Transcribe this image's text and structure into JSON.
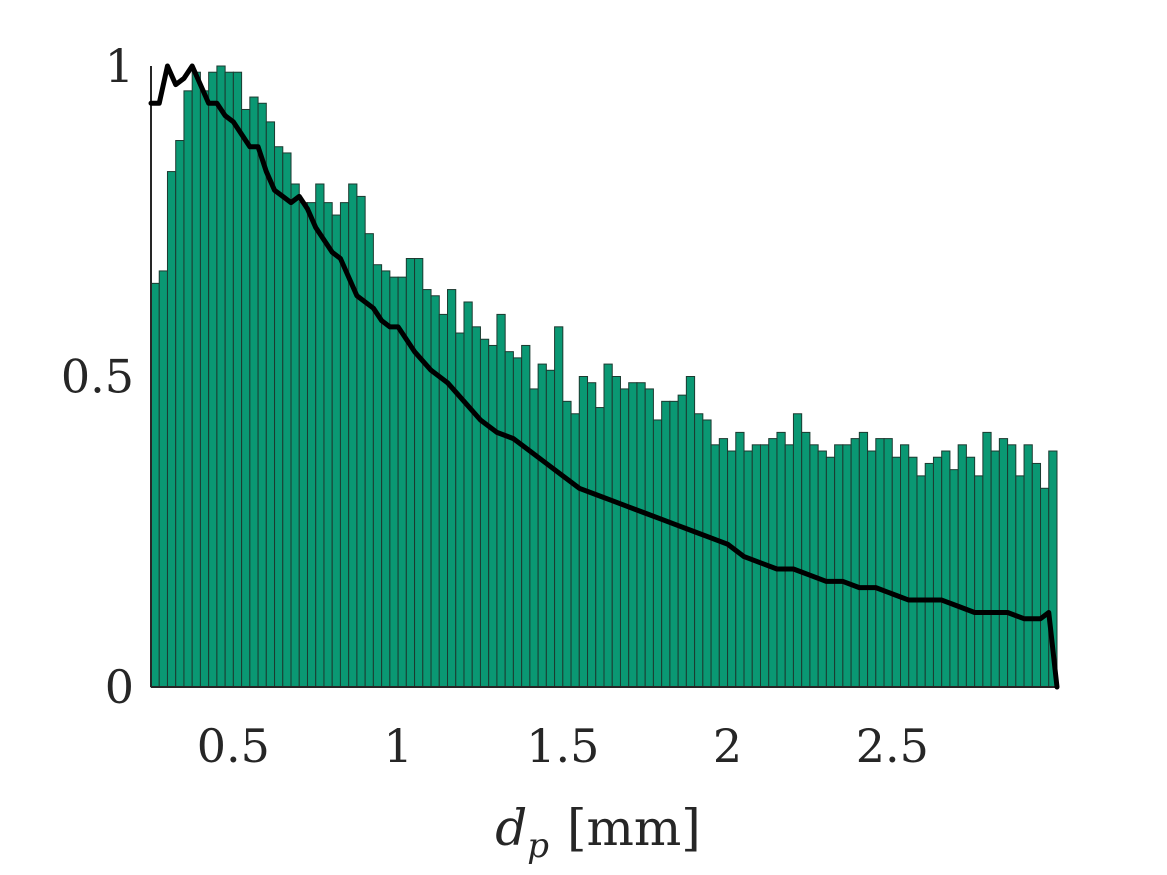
{
  "chart_data": {
    "type": "bar",
    "title": "",
    "xlabel": {
      "var": "d",
      "sub": "p",
      "unit": "[mm]"
    },
    "ylabel": "",
    "xlim": [
      0.25,
      3.0
    ],
    "ylim": [
      0,
      1
    ],
    "grid": false,
    "legend": "none",
    "bin_start": 0.25,
    "bin_width": 0.025,
    "x_ticks": [
      0.5,
      1,
      1.5,
      2,
      2.5
    ],
    "x_tick_labels": [
      "0.5",
      "1",
      "1.5",
      "2",
      "2.5"
    ],
    "y_ticks": [
      0,
      0.5,
      1
    ],
    "y_tick_labels": [
      "0",
      "0.5",
      "1"
    ],
    "colors": {
      "bar_fill": "#0a9873",
      "bar_edge": "#1c3a30",
      "line": "#000000",
      "axis": "#262626"
    },
    "series": [
      {
        "type": "bar",
        "values": [
          0.65,
          0.67,
          0.83,
          0.88,
          0.96,
          0.99,
          0.96,
          0.99,
          1.0,
          0.99,
          0.99,
          0.93,
          0.95,
          0.94,
          0.91,
          0.87,
          0.86,
          0.81,
          0.78,
          0.78,
          0.81,
          0.78,
          0.76,
          0.78,
          0.81,
          0.79,
          0.73,
          0.68,
          0.67,
          0.66,
          0.66,
          0.69,
          0.69,
          0.64,
          0.63,
          0.6,
          0.64,
          0.57,
          0.62,
          0.58,
          0.56,
          0.55,
          0.6,
          0.54,
          0.53,
          0.55,
          0.48,
          0.52,
          0.51,
          0.58,
          0.46,
          0.44,
          0.5,
          0.49,
          0.45,
          0.52,
          0.5,
          0.48,
          0.49,
          0.49,
          0.48,
          0.43,
          0.46,
          0.46,
          0.47,
          0.5,
          0.44,
          0.43,
          0.39,
          0.4,
          0.38,
          0.41,
          0.38,
          0.39,
          0.39,
          0.4,
          0.41,
          0.39,
          0.44,
          0.41,
          0.39,
          0.38,
          0.37,
          0.39,
          0.39,
          0.4,
          0.41,
          0.38,
          0.4,
          0.4,
          0.37,
          0.39,
          0.37,
          0.34,
          0.36,
          0.37,
          0.38,
          0.35,
          0.39,
          0.37,
          0.34,
          0.41,
          0.38,
          0.4,
          0.39,
          0.34,
          0.39,
          0.36,
          0.32,
          0.38,
          0.35,
          0.38,
          0.36,
          0.32,
          0.37,
          0.32,
          0.33,
          0.36,
          0.36,
          0.37,
          0.3,
          0.35,
          0.31,
          0.32,
          0.34,
          0.33,
          0.37,
          0.32,
          0.36,
          0.28
        ]
      },
      {
        "type": "line",
        "x": [
          0.25,
          0.275,
          0.3,
          0.325,
          0.35,
          0.375,
          0.4,
          0.425,
          0.45,
          0.475,
          0.5,
          0.525,
          0.55,
          0.575,
          0.6,
          0.625,
          0.65,
          0.675,
          0.7,
          0.725,
          0.75,
          0.775,
          0.8,
          0.825,
          0.85,
          0.875,
          0.9,
          0.925,
          0.95,
          0.975,
          1.0,
          1.05,
          1.1,
          1.15,
          1.2,
          1.25,
          1.3,
          1.35,
          1.4,
          1.45,
          1.5,
          1.55,
          1.6,
          1.65,
          1.7,
          1.75,
          1.8,
          1.85,
          1.9,
          1.95,
          2.0,
          2.05,
          2.1,
          2.15,
          2.2,
          2.25,
          2.3,
          2.35,
          2.4,
          2.45,
          2.5,
          2.55,
          2.6,
          2.65,
          2.7,
          2.75,
          2.8,
          2.85,
          2.9,
          2.95,
          2.975,
          3.0
        ],
        "y": [
          0.94,
          0.94,
          1.0,
          0.97,
          0.98,
          1.0,
          0.97,
          0.94,
          0.94,
          0.92,
          0.91,
          0.89,
          0.87,
          0.87,
          0.83,
          0.8,
          0.79,
          0.78,
          0.79,
          0.77,
          0.74,
          0.72,
          0.7,
          0.69,
          0.66,
          0.63,
          0.62,
          0.61,
          0.59,
          0.58,
          0.58,
          0.54,
          0.51,
          0.49,
          0.46,
          0.43,
          0.41,
          0.4,
          0.38,
          0.36,
          0.34,
          0.32,
          0.31,
          0.3,
          0.29,
          0.28,
          0.27,
          0.26,
          0.25,
          0.24,
          0.23,
          0.21,
          0.2,
          0.19,
          0.19,
          0.18,
          0.17,
          0.17,
          0.16,
          0.16,
          0.15,
          0.14,
          0.14,
          0.14,
          0.13,
          0.12,
          0.12,
          0.12,
          0.11,
          0.11,
          0.12,
          0.0
        ]
      }
    ]
  }
}
